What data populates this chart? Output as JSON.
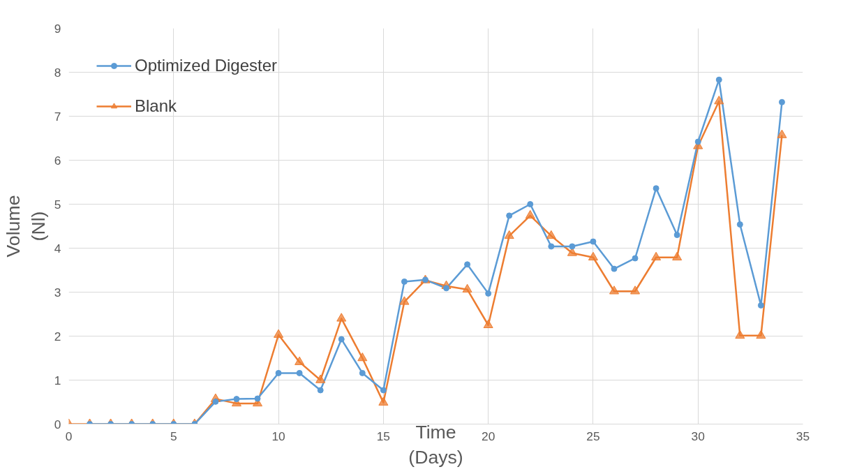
{
  "chart_data": {
    "type": "line",
    "xlabel": "Time\n(Days)",
    "ylabel": "Volume\n(Nl)",
    "xlim": [
      0,
      35
    ],
    "xticks": [
      0,
      5,
      10,
      15,
      20,
      25,
      30,
      35
    ],
    "ylim": [
      0,
      9
    ],
    "yticks": [
      0,
      1,
      2,
      3,
      4,
      5,
      6,
      7,
      8,
      9
    ],
    "grid": true,
    "legend": "top left",
    "line_style": "solid",
    "series": [
      {
        "name": "Optimized Digester",
        "color": "#5b9bd5",
        "marker": "circle",
        "x": [
          1,
          2,
          3,
          4,
          5,
          6,
          7,
          8,
          9,
          10,
          11,
          12,
          13,
          14,
          15,
          16,
          17,
          18,
          19,
          20,
          21,
          22,
          23,
          24,
          25,
          26,
          27,
          28,
          29,
          30,
          31,
          32,
          33,
          34
        ],
        "values": [
          0,
          0,
          0,
          0,
          0,
          0,
          0.51,
          0.57,
          0.58,
          1.16,
          1.16,
          0.77,
          1.93,
          1.16,
          0.77,
          3.24,
          3.28,
          3.09,
          3.63,
          2.97,
          4.74,
          5.0,
          4.04,
          4.04,
          4.15,
          3.53,
          3.77,
          5.36,
          4.3,
          6.42,
          7.83,
          4.54,
          2.7,
          7.32
        ]
      },
      {
        "name": "Blank",
        "color": "#ed7d31",
        "marker": "triangle",
        "x": [
          0,
          1,
          2,
          3,
          4,
          5,
          6,
          7,
          8,
          9,
          10,
          11,
          12,
          13,
          14,
          15,
          16,
          17,
          18,
          19,
          20,
          21,
          22,
          23,
          24,
          25,
          26,
          27,
          28,
          29,
          30,
          31,
          32,
          33,
          34
        ],
        "values": [
          0,
          0,
          0,
          0,
          0,
          0,
          0,
          0.57,
          0.47,
          0.47,
          2.03,
          1.41,
          1.0,
          2.4,
          1.5,
          0.49,
          2.78,
          3.27,
          3.14,
          3.06,
          2.25,
          4.28,
          4.74,
          4.28,
          3.89,
          3.79,
          3.02,
          3.02,
          3.79,
          3.79,
          6.32,
          7.34,
          2.01,
          2.01,
          6.57
        ]
      }
    ]
  }
}
